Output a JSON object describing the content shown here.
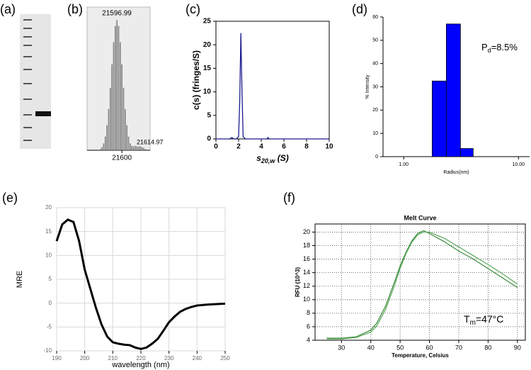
{
  "chart_data": [
    {
      "type": "gel",
      "panel_label": "(a)"
    },
    {
      "type": "bar",
      "panel_label": "(b)",
      "x": [
        21586,
        21587,
        21588,
        21589,
        21590,
        21591,
        21592,
        21593,
        21594,
        21595,
        21596,
        21597,
        21598,
        21599,
        21600,
        21601,
        21602,
        21603,
        21604,
        21605,
        21606,
        21607,
        21608,
        21609,
        21610,
        21611,
        21612,
        21613,
        21614
      ],
      "values": [
        0.4,
        1,
        2.4,
        5.3,
        10.5,
        19.2,
        31.7,
        48,
        66,
        83,
        95.5,
        100,
        95.5,
        83,
        66,
        48,
        31.7,
        19.2,
        10.5,
        5.3,
        3.4,
        3,
        3.4,
        3,
        3,
        3,
        2.5,
        2,
        1
      ],
      "color": "#7f7f7f",
      "xlim": [
        21579,
        21617
      ],
      "xticks": [
        21600
      ],
      "ylim": [
        0,
        110
      ],
      "annotations": [
        "21596.99",
        "21614.97"
      ]
    },
    {
      "type": "line",
      "panel_label": "(c)",
      "x": [
        0,
        1.2,
        1.4,
        1.6,
        1.8,
        2.0,
        2.1,
        2.2,
        2.3,
        2.4,
        2.6,
        3,
        4.5,
        4.6,
        4.7,
        5,
        10
      ],
      "values": [
        0,
        0,
        0.3,
        0,
        0,
        0.5,
        8,
        22.5,
        10,
        0.5,
        0,
        0,
        0,
        0.3,
        0,
        0,
        0
      ],
      "color": "#1a1a8c",
      "xlim": [
        0,
        10
      ],
      "xticks": [
        0,
        2,
        4,
        6,
        8,
        10
      ],
      "ylim": [
        0,
        25
      ],
      "yticks": [
        0,
        5,
        10,
        15,
        20,
        25
      ],
      "y_label": "c(s) (fringes/S)",
      "x_label": {
        "main": "s",
        "sub": "20,w",
        "rest": " (S)"
      }
    },
    {
      "type": "histogram",
      "panel_label": "(d)",
      "bins": [
        1.77,
        2.35,
        3.12,
        4.03
      ],
      "values": [
        32.5,
        57,
        3.5
      ],
      "color": "#0000ff",
      "log_x": true,
      "xlim": [
        0.66,
        12.5
      ],
      "xticks": [
        {
          "value": 1,
          "label": "1.00"
        },
        {
          "value": 10,
          "label": "10.00"
        }
      ],
      "ylim": [
        0,
        60
      ],
      "yticks": [
        0,
        10,
        20,
        30,
        40,
        50,
        60
      ],
      "x_label": "Radius(nm)",
      "y_label": "% Intensity",
      "annotation": {
        "main": "P",
        "sub": "d",
        "rest": "=8.5%"
      }
    },
    {
      "type": "line",
      "panel_label": "(e)",
      "x": [
        190,
        192,
        194,
        196,
        198,
        200,
        202,
        204,
        206,
        208,
        210,
        212,
        214,
        216,
        218,
        220,
        222,
        224,
        226,
        228,
        230,
        232,
        234,
        236,
        238,
        240,
        244,
        250
      ],
      "values": [
        13,
        16.5,
        17.5,
        17,
        13,
        7,
        3,
        -1,
        -4.5,
        -7,
        -8.2,
        -8.5,
        -8.7,
        -8.8,
        -9.3,
        -9.6,
        -9.3,
        -8.5,
        -7.5,
        -5.8,
        -4,
        -2.8,
        -1.8,
        -1.2,
        -0.8,
        -0.5,
        -0.3,
        -0.1
      ],
      "color": "#000000",
      "xlim": [
        190,
        250
      ],
      "xticks": [
        190,
        200,
        210,
        220,
        230,
        240,
        250
      ],
      "ylim": [
        -10,
        20
      ],
      "yticks": [
        -10,
        -5,
        0,
        5,
        10,
        15,
        20
      ],
      "grid": true,
      "x_label": "wavelength (nm)",
      "y_label": "MRE"
    },
    {
      "type": "line",
      "panel_label": "(f)",
      "title": "Melt Curve",
      "x": [
        25,
        30,
        35,
        40,
        42,
        45,
        48,
        50,
        52,
        54,
        56,
        58,
        60,
        65,
        70,
        75,
        80,
        85,
        90
      ],
      "series": [
        {
          "color": "#3a8a3a",
          "values": [
            4.3,
            4.3,
            4.5,
            5.5,
            6.5,
            9,
            12.5,
            15,
            17,
            18.7,
            19.8,
            20.2,
            19.8,
            18.6,
            17.2,
            16,
            14.6,
            13.2,
            11.8
          ]
        },
        {
          "color": "#5aa85a",
          "values": [
            4.2,
            4.2,
            4.4,
            5.2,
            6.1,
            8.5,
            12,
            14.6,
            16.8,
            18.5,
            19.6,
            20,
            20,
            19.1,
            17.8,
            16.5,
            15.2,
            13.8,
            12.3
          ]
        }
      ],
      "xlim": [
        21,
        92.7
      ],
      "xticks": [
        30,
        40,
        50,
        60,
        70,
        80,
        90
      ],
      "ylim": [
        4,
        21.2
      ],
      "yticks": [
        4,
        6,
        8,
        10,
        12,
        14,
        16,
        18,
        20
      ],
      "grid": true,
      "x_label": "Temperature, Celsius",
      "y_label": "RFU (10^3)",
      "annotation": {
        "main": "T",
        "sub": "m",
        "rest": "=47°C"
      }
    }
  ]
}
